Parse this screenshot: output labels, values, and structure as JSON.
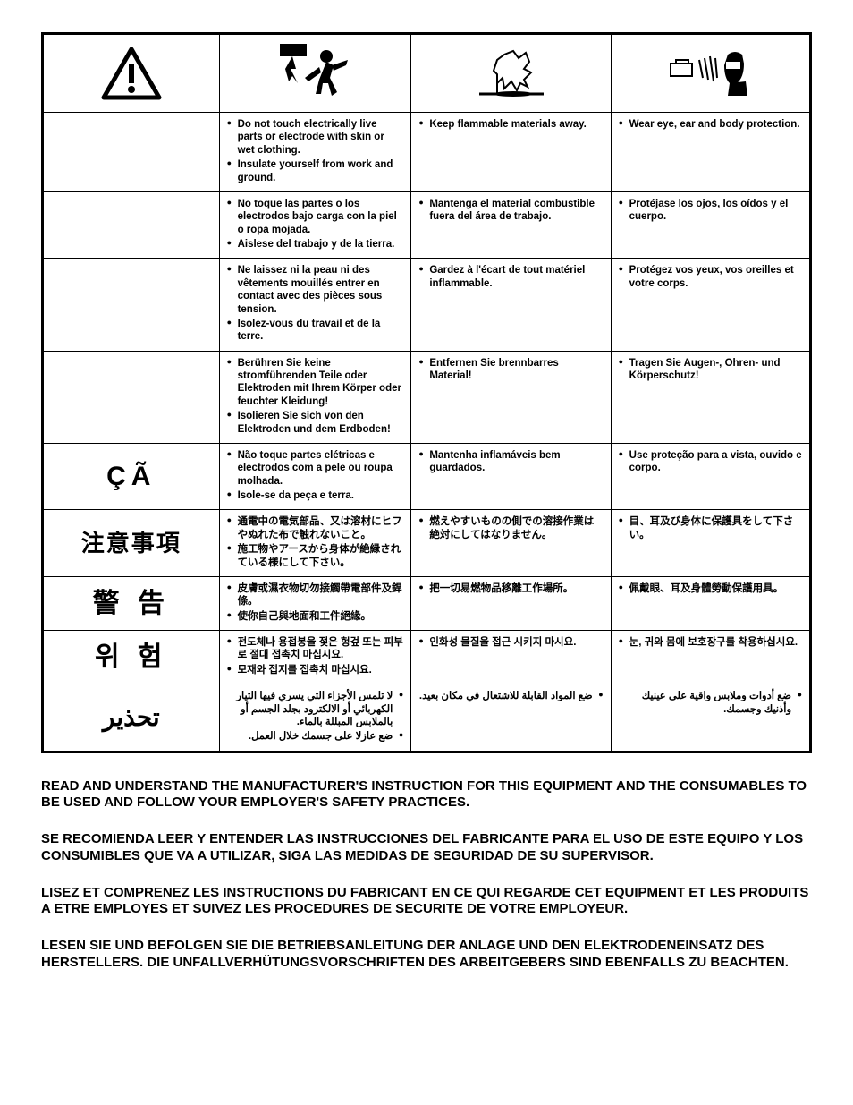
{
  "icons": {
    "warning": "warning-triangle",
    "shock": "person-shock",
    "fire": "explosion-fire",
    "ppe": "ppe-head"
  },
  "rows": [
    {
      "lang": "",
      "col1": [
        "Do not touch electrically live parts or electrode with skin or wet clothing.",
        "Insulate yourself from work and ground."
      ],
      "col2": [
        "Keep flammable materials away."
      ],
      "col3": [
        "Wear eye, ear and body protection."
      ]
    },
    {
      "lang": "",
      "col1": [
        "No toque las partes o los electrodos bajo carga con la piel o ropa mojada.",
        "Aislese del trabajo y de la tierra."
      ],
      "col2": [
        "Mantenga el material combustible fuera del área de trabajo."
      ],
      "col3": [
        "Protéjase los ojos, los oídos y el cuerpo."
      ]
    },
    {
      "lang": "",
      "col1": [
        "Ne laissez ni la peau ni des vêtements mouillés entrer en contact avec des pièces sous tension.",
        "Isolez-vous du travail et de la terre."
      ],
      "col2": [
        "Gardez à l'écart de tout matériel inflammable."
      ],
      "col3": [
        "Protégez vos yeux, vos oreilles et votre corps."
      ]
    },
    {
      "lang": "",
      "col1": [
        "Berühren Sie keine stromführenden Teile oder Elektroden mit Ihrem Körper oder feuchter Kleidung!",
        "Isolieren Sie sich von den Elektroden und dem Erdboden!"
      ],
      "col2": [
        "Entfernen Sie brennbarres Material!"
      ],
      "col3": [
        "Tragen Sie Augen-, Ohren- und Körperschutz!"
      ]
    },
    {
      "lang": "ÇÃ",
      "col1": [
        "Não toque partes elétricas e electrodos com a pele ou roupa molhada.",
        "Isole-se da peça e terra."
      ],
      "col2": [
        "Mantenha inflamáveis bem guardados."
      ],
      "col3": [
        "Use proteção para a vista, ouvido e corpo."
      ]
    },
    {
      "lang": "注意事項",
      "col1": [
        "通電中の電気部品、又は溶材にヒフやぬれた布で触れないこと。",
        "施工物やアースから身体が絶縁されている様にして下さい。"
      ],
      "col2": [
        "燃えやすいものの側での溶接作業は絶対にしてはなりません。"
      ],
      "col3": [
        "目、耳及び身体に保護具をして下さい。"
      ]
    },
    {
      "lang": "警 告",
      "col1": [
        "皮膚或濕衣物切勿接觸帶電部件及銲條。",
        "使你自己與地面和工件絕緣。"
      ],
      "col2": [
        "把一切易燃物品移離工作場所。"
      ],
      "col3": [
        "佩戴眼、耳及身體勞動保護用具。"
      ]
    },
    {
      "lang": "위 험",
      "col1": [
        "전도체나 용접봉을 젖은 헝겊 또는 피부로 절대 접촉치 마십시요.",
        "모재와 접지를 접촉치 마십시요."
      ],
      "col2": [
        "인화성 물질을 접근 시키지 마시요."
      ],
      "col3": [
        "눈, 귀와 몸에 보호장구를 착용하십시요."
      ]
    },
    {
      "lang": "تحذير",
      "rtl": true,
      "col1": [
        "لا تلمس الأجزاء التي يسري فيها التيار الكهربائي أو الالكترود بجلد الجسم أو بالملابس المبللة بالماء.",
        "ضع عازلا على جسمك خلال العمل."
      ],
      "col2": [
        "ضع المواد القابلة للاشتعال في مكان بعيد."
      ],
      "col3": [
        "ضع أدوات وملابس واقية على عينيك وأذنيك وجسمك."
      ]
    }
  ],
  "footer": [
    "READ AND UNDERSTAND THE MANUFACTURER'S INSTRUCTION FOR THIS EQUIPMENT AND THE CONSUMABLES TO BE USED AND FOLLOW YOUR EMPLOYER'S SAFETY PRACTICES.",
    "SE RECOMIENDA LEER Y ENTENDER LAS INSTRUCCIONES DEL FABRICANTE PARA EL USO DE ESTE EQUIPO Y LOS CONSUMIBLES QUE VA A UTILIZAR, SIGA LAS MEDIDAS DE SEGURIDAD DE SU SUPERVISOR.",
    "LISEZ ET COMPRENEZ LES INSTRUCTIONS DU FABRICANT EN CE QUI REGARDE CET EQUIPMENT ET LES PRODUITS A ETRE EMPLOYES ET SUIVEZ LES PROCEDURES DE SECURITE DE VOTRE EMPLOYEUR.",
    "LESEN SIE UND BEFOLGEN SIE DIE BETRIEBSANLEITUNG DER ANLAGE UND DEN ELEKTRODENEINSATZ DES HERSTELLERS. DIE UNFALLVERHÜTUNGSVORSCHRIFTEN DES ARBEITGEBERS SIND EBENFALLS ZU BEACHTEN."
  ],
  "colors": {
    "border": "#000000",
    "text": "#000000",
    "bg": "#ffffff"
  }
}
